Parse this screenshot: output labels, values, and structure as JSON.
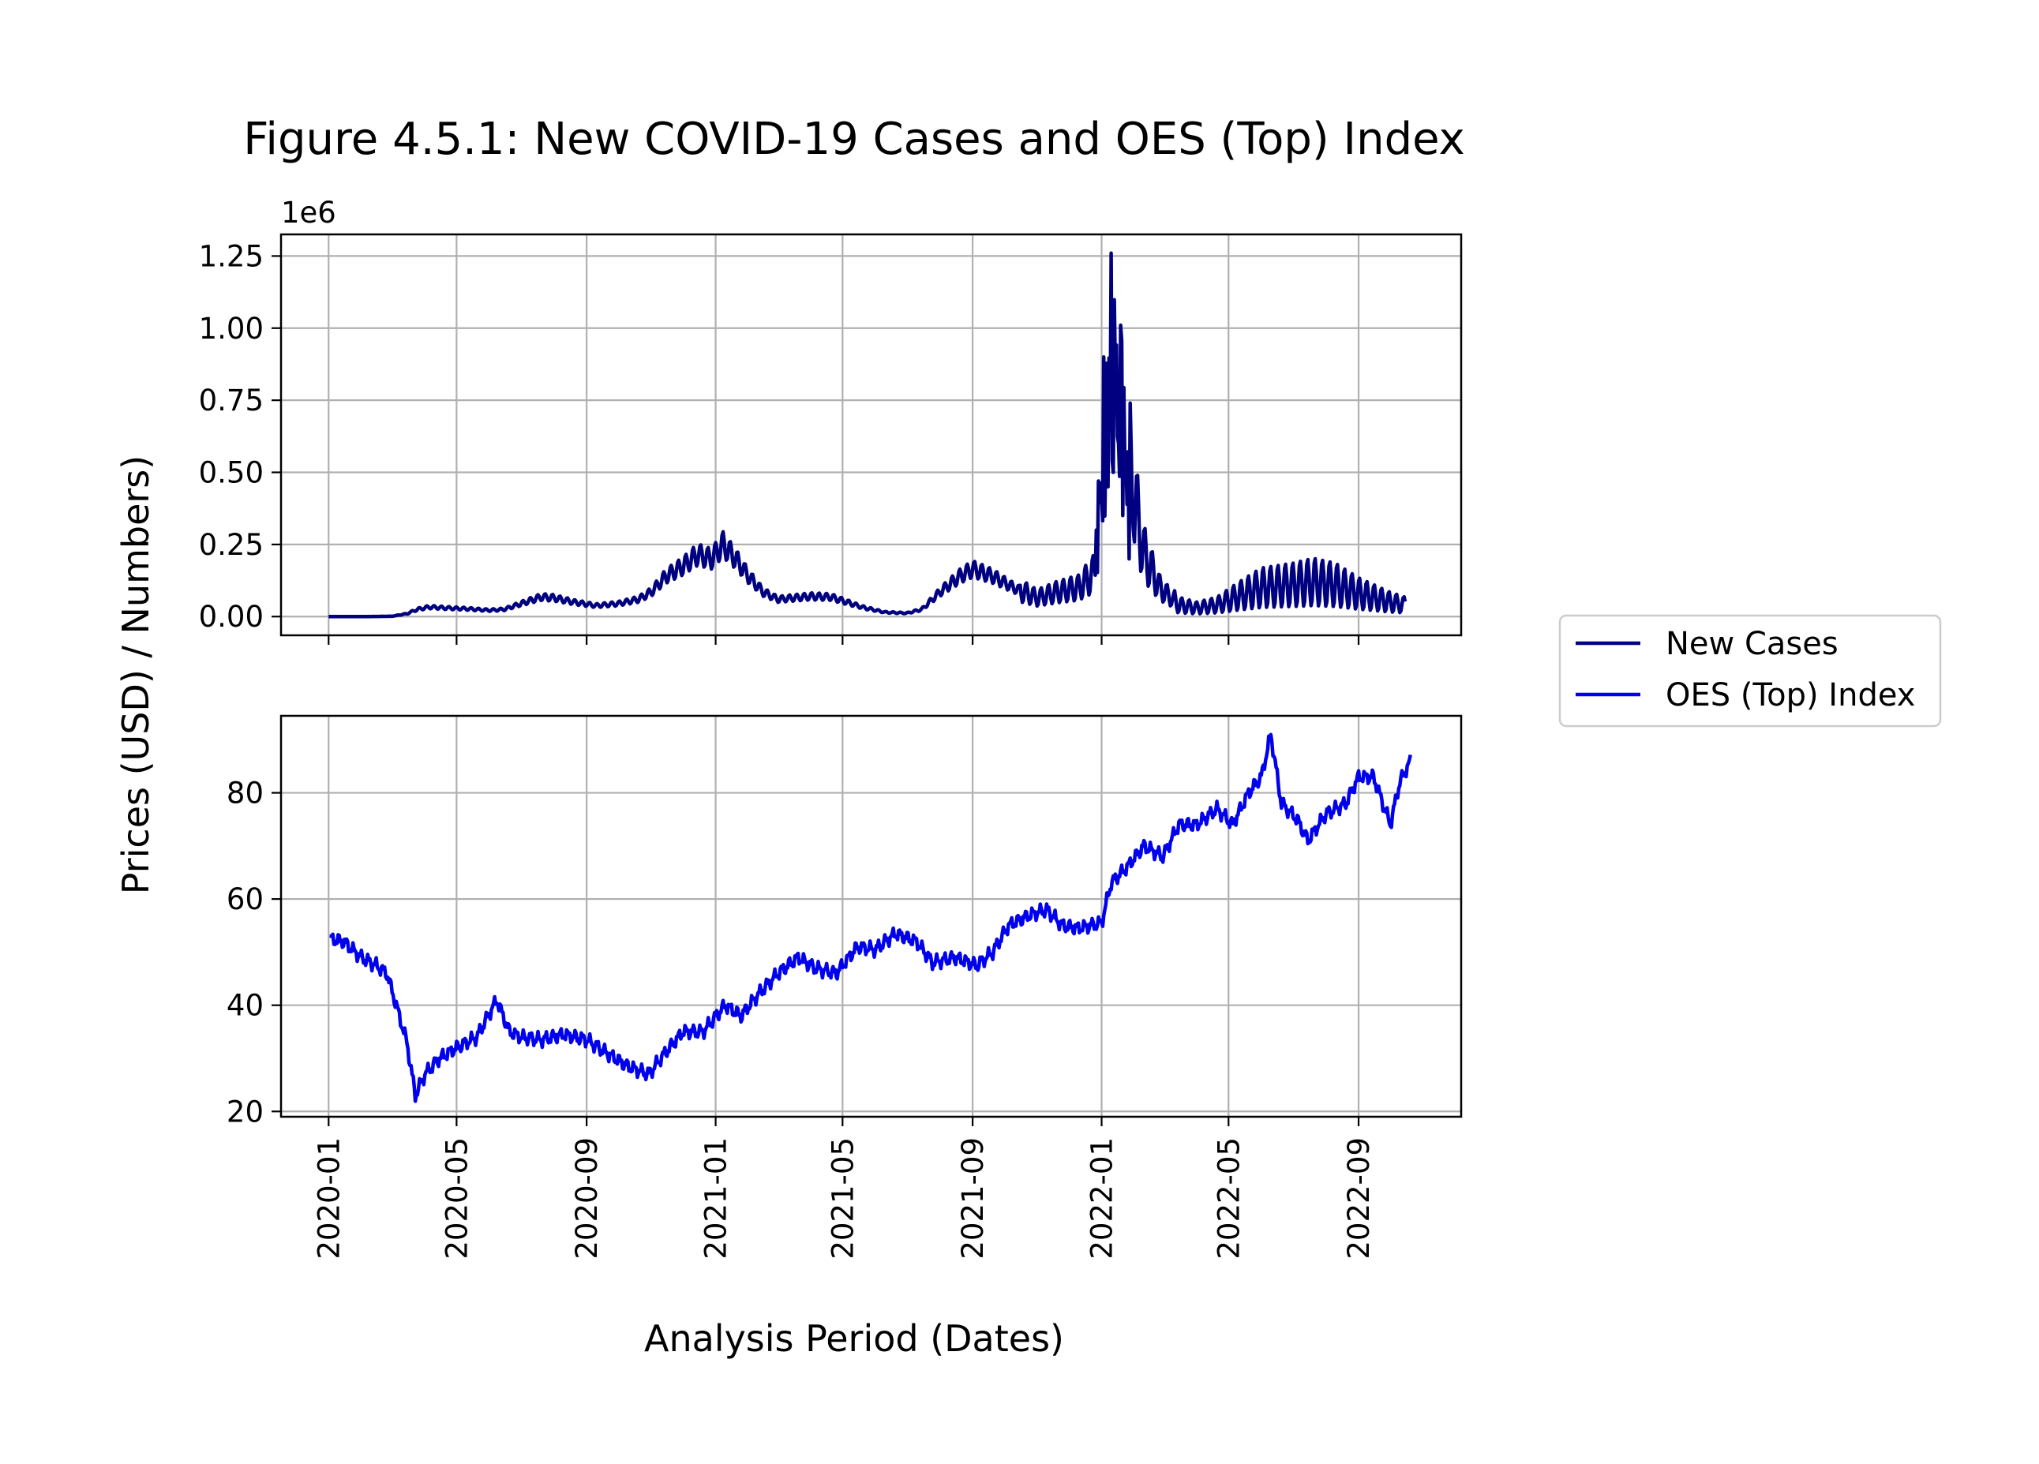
{
  "chart_data": [
    {
      "type": "line",
      "title": "Figure 4.5.1: New COVID-19 Cases and OES (Top) Index",
      "ylabel": "Prices (USD) / Numbers)",
      "xlabel": "Analysis Period (Dates)",
      "offset_text": "1e6",
      "ylim": [
        -0.065,
        1.325
      ],
      "yticks": [
        0.0,
        0.25,
        0.5,
        0.75,
        1.0,
        1.25
      ],
      "ytick_labels": [
        "0.00",
        "0.25",
        "0.50",
        "0.75",
        "1.00",
        "1.25"
      ],
      "xlim": [
        "2019-11-17",
        "2022-12-07"
      ],
      "xticks": [
        "2020-01",
        "2020-05",
        "2020-09",
        "2021-01",
        "2021-05",
        "2021-09",
        "2022-01",
        "2022-05",
        "2022-09"
      ],
      "grid": true,
      "series": [
        {
          "name": "New Cases",
          "color": "#000080",
          "points": [
            [
              "2020-01-01",
              0.0
            ],
            [
              "2020-02-01",
              0.0
            ],
            [
              "2020-03-01",
              0.001
            ],
            [
              "2020-03-15",
              0.01
            ],
            [
              "2020-03-25",
              0.025
            ],
            [
              "2020-04-05",
              0.033
            ],
            [
              "2020-04-20",
              0.03
            ],
            [
              "2020-05-10",
              0.027
            ],
            [
              "2020-06-01",
              0.022
            ],
            [
              "2020-06-15",
              0.025
            ],
            [
              "2020-07-01",
              0.045
            ],
            [
              "2020-07-20",
              0.068
            ],
            [
              "2020-08-01",
              0.065
            ],
            [
              "2020-08-20",
              0.05
            ],
            [
              "2020-09-10",
              0.038
            ],
            [
              "2020-10-01",
              0.045
            ],
            [
              "2020-10-20",
              0.06
            ],
            [
              "2020-11-01",
              0.085
            ],
            [
              "2020-11-15",
              0.14
            ],
            [
              "2020-12-01",
              0.175
            ],
            [
              "2020-12-15",
              0.215
            ],
            [
              "2020-12-28",
              0.2
            ],
            [
              "2021-01-08",
              0.25
            ],
            [
              "2021-01-20",
              0.2
            ],
            [
              "2021-02-01",
              0.14
            ],
            [
              "2021-02-15",
              0.085
            ],
            [
              "2021-03-01",
              0.06
            ],
            [
              "2021-04-01",
              0.07
            ],
            [
              "2021-04-20",
              0.068
            ],
            [
              "2021-05-01",
              0.055
            ],
            [
              "2021-05-20",
              0.032
            ],
            [
              "2021-06-10",
              0.015
            ],
            [
              "2021-07-01",
              0.012
            ],
            [
              "2021-07-15",
              0.025
            ],
            [
              "2021-08-01",
              0.085
            ],
            [
              "2021-08-20",
              0.14
            ],
            [
              "2021-09-01",
              0.165
            ],
            [
              "2021-09-20",
              0.14
            ],
            [
              "2021-10-10",
              0.1
            ],
            [
              "2021-11-01",
              0.065
            ],
            [
              "2021-11-20",
              0.085
            ],
            [
              "2021-12-10",
              0.1
            ],
            [
              "2021-12-25",
              0.15
            ],
            [
              "2022-01-01",
              0.35
            ],
            [
              "2022-01-05",
              0.6
            ],
            [
              "2022-01-10",
              0.85
            ],
            [
              "2022-01-18",
              0.75
            ],
            [
              "2022-01-25",
              0.6
            ],
            [
              "2022-02-01",
              0.4
            ],
            [
              "2022-02-10",
              0.22
            ],
            [
              "2022-02-25",
              0.1
            ],
            [
              "2022-03-15",
              0.04
            ],
            [
              "2022-04-01",
              0.03
            ],
            [
              "2022-04-20",
              0.04
            ],
            [
              "2022-05-10",
              0.07
            ],
            [
              "2022-06-01",
              0.1
            ],
            [
              "2022-07-01",
              0.11
            ],
            [
              "2022-07-20",
              0.12
            ],
            [
              "2022-08-10",
              0.11
            ],
            [
              "2022-09-01",
              0.08
            ],
            [
              "2022-10-01",
              0.05
            ],
            [
              "2022-10-15",
              0.04
            ]
          ],
          "spikes": [
            [
              "2022-01-03",
              0.9
            ],
            [
              "2022-01-07",
              0.45
            ],
            [
              "2022-01-10",
              1.26
            ],
            [
              "2022-01-12",
              0.5
            ],
            [
              "2022-01-14",
              0.85
            ],
            [
              "2022-01-17",
              0.6
            ],
            [
              "2022-01-19",
              1.01
            ],
            [
              "2022-01-21",
              0.35
            ],
            [
              "2022-01-24",
              0.57
            ],
            [
              "2022-01-27",
              0.2
            ],
            [
              "2022-01-31",
              0.3
            ],
            [
              "2021-12-29",
              0.47
            ],
            [
              "2021-12-27",
              0.3
            ]
          ]
        }
      ]
    },
    {
      "type": "line",
      "ylim": [
        19,
        94.5
      ],
      "yticks": [
        20,
        40,
        60,
        80
      ],
      "ytick_labels": [
        "20",
        "40",
        "60",
        "80"
      ],
      "xlim": [
        "2019-11-17",
        "2022-12-07"
      ],
      "xticks": [
        "2020-01",
        "2020-05",
        "2020-09",
        "2021-01",
        "2021-05",
        "2021-09",
        "2022-01",
        "2022-05",
        "2022-09"
      ],
      "xtick_labels": [
        "2020-01",
        "2020-05",
        "2020-09",
        "2021-01",
        "2021-05",
        "2021-09",
        "2022-01",
        "2022-05",
        "2022-09"
      ],
      "grid": true,
      "series": [
        {
          "name": "OES (Top) Index",
          "color": "#0000ee",
          "points": [
            [
              "2020-01-02",
              52.5
            ],
            [
              "2020-01-15",
              52
            ],
            [
              "2020-02-01",
              49
            ],
            [
              "2020-02-15",
              47.5
            ],
            [
              "2020-02-25",
              46
            ],
            [
              "2020-03-05",
              40
            ],
            [
              "2020-03-15",
              33
            ],
            [
              "2020-03-23",
              23
            ],
            [
              "2020-04-01",
              27
            ],
            [
              "2020-04-15",
              30
            ],
            [
              "2020-05-01",
              32
            ],
            [
              "2020-05-20",
              34
            ],
            [
              "2020-06-08",
              41
            ],
            [
              "2020-06-20",
              35
            ],
            [
              "2020-07-01",
              34
            ],
            [
              "2020-07-20",
              33.5
            ],
            [
              "2020-08-10",
              34.5
            ],
            [
              "2020-09-01",
              33.5
            ],
            [
              "2020-09-20",
              31
            ],
            [
              "2020-10-10",
              28.5
            ],
            [
              "2020-10-30",
              27
            ],
            [
              "2020-11-10",
              30
            ],
            [
              "2020-12-01",
              35
            ],
            [
              "2020-12-20",
              35
            ],
            [
              "2021-01-10",
              40
            ],
            [
              "2021-01-25",
              38
            ],
            [
              "2021-02-10",
              42
            ],
            [
              "2021-03-01",
              46
            ],
            [
              "2021-03-20",
              49
            ],
            [
              "2021-04-05",
              47
            ],
            [
              "2021-04-25",
              46
            ],
            [
              "2021-05-15",
              51
            ],
            [
              "2021-06-01",
              50.5
            ],
            [
              "2021-06-20",
              53.5
            ],
            [
              "2021-07-10",
              52
            ],
            [
              "2021-07-25",
              48
            ],
            [
              "2021-08-15",
              49
            ],
            [
              "2021-09-05",
              47.5
            ],
            [
              "2021-09-20",
              50
            ],
            [
              "2021-10-05",
              55
            ],
            [
              "2021-10-25",
              57
            ],
            [
              "2021-11-10",
              58
            ],
            [
              "2021-11-25",
              55
            ],
            [
              "2021-12-10",
              54.5
            ],
            [
              "2022-01-01",
              55.5
            ],
            [
              "2022-01-10",
              63
            ],
            [
              "2022-01-25",
              66
            ],
            [
              "2022-02-10",
              70
            ],
            [
              "2022-02-28",
              68
            ],
            [
              "2022-03-15",
              74
            ],
            [
              "2022-04-01",
              74
            ],
            [
              "2022-04-20",
              77
            ],
            [
              "2022-05-05",
              74
            ],
            [
              "2022-05-20",
              80
            ],
            [
              "2022-06-01",
              83
            ],
            [
              "2022-06-10",
              91
            ],
            [
              "2022-06-20",
              78
            ],
            [
              "2022-07-05",
              75
            ],
            [
              "2022-07-15",
              71
            ],
            [
              "2022-08-01",
              76
            ],
            [
              "2022-08-20",
              78
            ],
            [
              "2022-09-01",
              83
            ],
            [
              "2022-09-15",
              83
            ],
            [
              "2022-10-01",
              74
            ],
            [
              "2022-10-10",
              82
            ],
            [
              "2022-10-20",
              86
            ]
          ]
        }
      ]
    }
  ],
  "legend": {
    "placement": "right",
    "entries": [
      {
        "label": "New Cases",
        "color": "#000080"
      },
      {
        "label": "OES (Top) Index",
        "color": "#0000ee"
      }
    ]
  }
}
